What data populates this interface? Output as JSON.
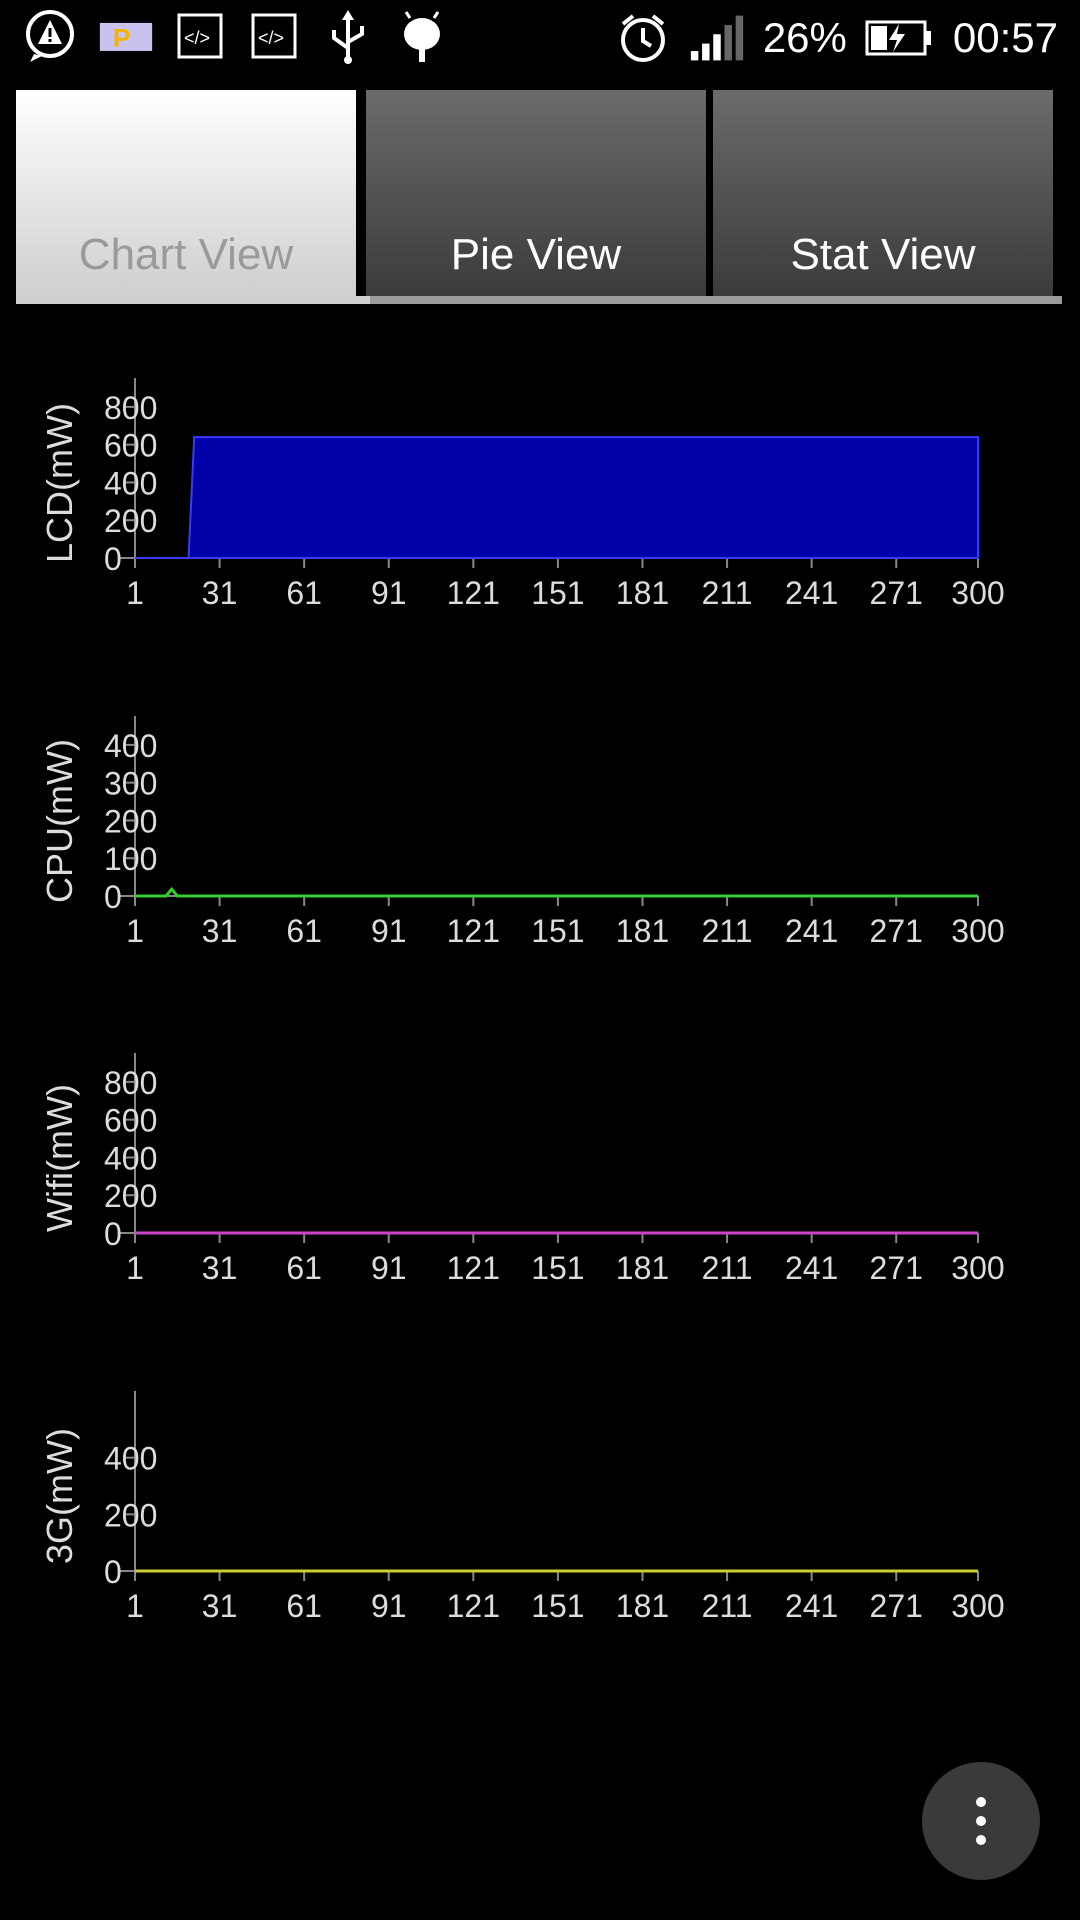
{
  "status_bar": {
    "battery_percent": "26%",
    "time": "00:57",
    "icons": [
      "alert-bubble-icon",
      "parking-icon",
      "code-icon",
      "code-icon",
      "usb-icon",
      "android-icon",
      "alarm-icon",
      "signal-icon",
      "battery-charging-icon"
    ]
  },
  "tabs": [
    {
      "label": "Chart View",
      "active": true
    },
    {
      "label": "Pie View",
      "active": false
    },
    {
      "label": "Stat View",
      "active": false
    }
  ],
  "chart_data": [
    {
      "type": "area",
      "ylabel": "LCD(mW)",
      "color": "#0000a8",
      "x_ticks": [
        1,
        31,
        61,
        91,
        121,
        151,
        181,
        211,
        241,
        271,
        300
      ],
      "y_ticks": [
        0,
        200,
        400,
        600,
        800
      ],
      "xlim": [
        1,
        300
      ],
      "ylim": [
        0,
        900
      ],
      "points": [
        [
          1,
          0
        ],
        [
          20,
          0
        ],
        [
          22,
          640
        ],
        [
          300,
          640
        ]
      ]
    },
    {
      "type": "line",
      "ylabel": "CPU(mW)",
      "color": "#33cc33",
      "x_ticks": [
        1,
        31,
        61,
        91,
        121,
        151,
        181,
        211,
        241,
        271,
        300
      ],
      "y_ticks": [
        0,
        100,
        200,
        300,
        400
      ],
      "xlim": [
        1,
        300
      ],
      "ylim": [
        0,
        450
      ],
      "points": [
        [
          1,
          0
        ],
        [
          12,
          0
        ],
        [
          14,
          18
        ],
        [
          16,
          0
        ],
        [
          300,
          0
        ]
      ]
    },
    {
      "type": "line",
      "ylabel": "Wifi(mW)",
      "color": "#cc44cc",
      "x_ticks": [
        1,
        31,
        61,
        91,
        121,
        151,
        181,
        211,
        241,
        271,
        300
      ],
      "y_ticks": [
        0,
        200,
        400,
        600,
        800
      ],
      "xlim": [
        1,
        300
      ],
      "ylim": [
        0,
        900
      ],
      "points": [
        [
          1,
          0
        ],
        [
          300,
          0
        ]
      ]
    },
    {
      "type": "line",
      "ylabel": "3G(mW)",
      "color": "#cccc33",
      "x_ticks": [
        1,
        31,
        61,
        91,
        121,
        151,
        181,
        211,
        241,
        271,
        300
      ],
      "y_ticks": [
        0,
        200,
        400
      ],
      "xlim": [
        1,
        300
      ],
      "ylim": [
        0,
        600
      ],
      "points": [
        [
          1,
          0
        ],
        [
          300,
          0
        ]
      ]
    }
  ],
  "fab": {
    "icon": "more-vert-icon"
  }
}
